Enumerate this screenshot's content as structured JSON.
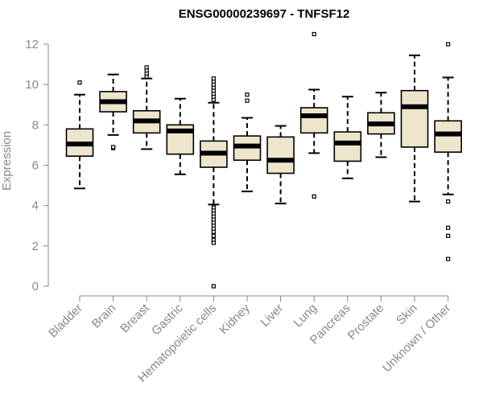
{
  "chart_data": {
    "type": "boxplot",
    "title": "ENSG00000239697 - TNFSF12",
    "xlabel": "",
    "ylabel": "Expression",
    "ylim": [
      0,
      12
    ],
    "yticks": [
      0,
      2,
      4,
      6,
      8,
      10,
      12
    ],
    "grid": false,
    "box_color": "#ede6cc",
    "categories": [
      "Bladder",
      "Brain",
      "Breast",
      "Gastric",
      "Hematopoietic cells",
      "Kidney",
      "Liver",
      "Lung",
      "Pancreas",
      "Prostate",
      "Skin",
      "Unknown / Other"
    ],
    "boxes": [
      {
        "name": "Bladder",
        "whislo": 4.85,
        "q1": 6.45,
        "med": 7.05,
        "q3": 7.8,
        "whishi": 9.5,
        "fliers": [
          10.1
        ]
      },
      {
        "name": "Brain",
        "whislo": 7.5,
        "q1": 8.65,
        "med": 9.15,
        "q3": 9.65,
        "whishi": 10.5,
        "fliers": [
          6.85,
          6.9
        ]
      },
      {
        "name": "Breast",
        "whislo": 6.8,
        "q1": 7.6,
        "med": 8.2,
        "q3": 8.7,
        "whishi": 10.3,
        "fliers": [
          10.4,
          10.55,
          10.7,
          10.85
        ]
      },
      {
        "name": "Gastric",
        "whislo": 5.55,
        "q1": 6.55,
        "med": 7.7,
        "q3": 8.0,
        "whishi": 9.3,
        "fliers": []
      },
      {
        "name": "Hematopoietic cells",
        "whislo": 4.05,
        "q1": 5.9,
        "med": 6.6,
        "q3": 7.2,
        "whishi": 9.1,
        "fliers": [
          9.25,
          9.4,
          9.55,
          9.7,
          9.85,
          10.0,
          10.15,
          10.3,
          3.9,
          3.75,
          3.6,
          3.45,
          3.3,
          3.15,
          3.0,
          2.85,
          2.7,
          2.5,
          2.3,
          2.15,
          0.0
        ]
      },
      {
        "name": "Kidney",
        "whislo": 4.7,
        "q1": 6.25,
        "med": 6.95,
        "q3": 7.45,
        "whishi": 8.35,
        "fliers": [
          9.2,
          9.5
        ]
      },
      {
        "name": "Liver",
        "whislo": 4.1,
        "q1": 5.6,
        "med": 6.25,
        "q3": 7.4,
        "whishi": 7.95,
        "fliers": []
      },
      {
        "name": "Lung",
        "whislo": 6.6,
        "q1": 7.6,
        "med": 8.45,
        "q3": 8.85,
        "whishi": 9.75,
        "fliers": [
          12.5,
          4.45
        ]
      },
      {
        "name": "Pancreas",
        "whislo": 5.35,
        "q1": 6.2,
        "med": 7.1,
        "q3": 7.65,
        "whishi": 9.4,
        "fliers": []
      },
      {
        "name": "Prostate",
        "whislo": 6.4,
        "q1": 7.55,
        "med": 8.05,
        "q3": 8.6,
        "whishi": 9.6,
        "fliers": []
      },
      {
        "name": "Skin",
        "whislo": 4.2,
        "q1": 6.9,
        "med": 8.9,
        "q3": 9.7,
        "whishi": 11.45,
        "fliers": []
      },
      {
        "name": "Unknown / Other",
        "whislo": 4.55,
        "q1": 6.65,
        "med": 7.55,
        "q3": 8.2,
        "whishi": 10.35,
        "fliers": [
          12.0,
          4.2,
          2.9,
          2.5,
          1.35
        ]
      }
    ]
  }
}
